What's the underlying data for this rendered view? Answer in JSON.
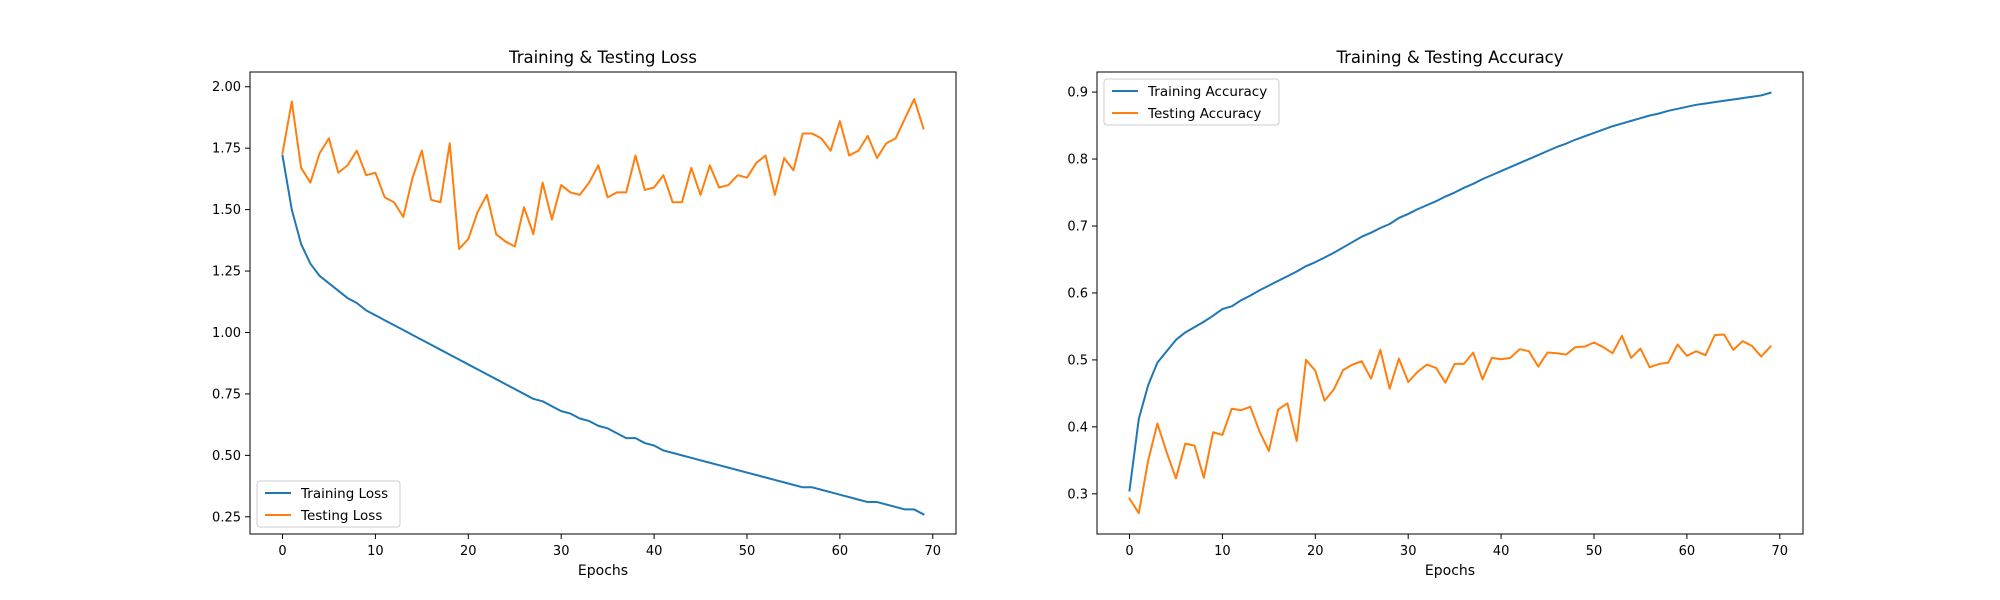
{
  "chart_data": [
    {
      "type": "line",
      "title": "Training & Testing Loss",
      "xlabel": "Epochs",
      "ylabel": "",
      "xlim": [
        -3.5,
        72.5
      ],
      "ylim": [
        0.18,
        2.06
      ],
      "xticks": [
        0,
        10,
        20,
        30,
        40,
        50,
        60,
        70
      ],
      "xtick_labels": [
        "0",
        "10",
        "20",
        "30",
        "40",
        "50",
        "60",
        "70"
      ],
      "yticks": [
        0.25,
        0.5,
        0.75,
        1.0,
        1.25,
        1.5,
        1.75,
        2.0
      ],
      "ytick_labels": [
        "0.25",
        "0.50",
        "0.75",
        "1.00",
        "1.25",
        "1.50",
        "1.75",
        "2.00"
      ],
      "grid": false,
      "legend_position": "lower-left",
      "series": [
        {
          "name": "Training Loss",
          "color": "#1f77b4",
          "values": [
            1.72,
            1.5,
            1.36,
            1.28,
            1.23,
            1.2,
            1.17,
            1.14,
            1.12,
            1.09,
            1.07,
            1.05,
            1.03,
            1.01,
            0.99,
            0.97,
            0.95,
            0.93,
            0.91,
            0.89,
            0.87,
            0.85,
            0.83,
            0.81,
            0.79,
            0.77,
            0.75,
            0.73,
            0.72,
            0.7,
            0.68,
            0.67,
            0.65,
            0.64,
            0.62,
            0.61,
            0.59,
            0.57,
            0.57,
            0.55,
            0.54,
            0.52,
            0.51,
            0.5,
            0.49,
            0.48,
            0.47,
            0.46,
            0.45,
            0.44,
            0.43,
            0.42,
            0.41,
            0.4,
            0.39,
            0.38,
            0.37,
            0.37,
            0.36,
            0.35,
            0.34,
            0.33,
            0.32,
            0.31,
            0.31,
            0.3,
            0.29,
            0.28,
            0.28,
            0.26
          ]
        },
        {
          "name": "Testing Loss",
          "color": "#ff7f0e",
          "values": [
            1.73,
            1.94,
            1.67,
            1.61,
            1.73,
            1.79,
            1.65,
            1.68,
            1.74,
            1.64,
            1.65,
            1.55,
            1.53,
            1.47,
            1.63,
            1.74,
            1.54,
            1.53,
            1.77,
            1.34,
            1.38,
            1.49,
            1.56,
            1.4,
            1.37,
            1.35,
            1.51,
            1.4,
            1.61,
            1.46,
            1.6,
            1.57,
            1.56,
            1.61,
            1.68,
            1.55,
            1.57,
            1.57,
            1.72,
            1.58,
            1.59,
            1.64,
            1.53,
            1.53,
            1.67,
            1.56,
            1.68,
            1.59,
            1.6,
            1.64,
            1.63,
            1.69,
            1.72,
            1.56,
            1.71,
            1.66,
            1.81,
            1.81,
            1.79,
            1.74,
            1.86,
            1.72,
            1.74,
            1.8,
            1.71,
            1.77,
            1.79,
            1.87,
            1.95,
            1.83
          ]
        }
      ]
    },
    {
      "type": "line",
      "title": "Training & Testing Accuracy",
      "xlabel": "Epochs",
      "ylabel": "",
      "xlim": [
        -3.5,
        72.5
      ],
      "ylim": [
        0.24,
        0.93
      ],
      "xticks": [
        0,
        10,
        20,
        30,
        40,
        50,
        60,
        70
      ],
      "xtick_labels": [
        "0",
        "10",
        "20",
        "30",
        "40",
        "50",
        "60",
        "70"
      ],
      "yticks": [
        0.3,
        0.4,
        0.5,
        0.6,
        0.7,
        0.8,
        0.9
      ],
      "ytick_labels": [
        "0.3",
        "0.4",
        "0.5",
        "0.6",
        "0.7",
        "0.8",
        "0.9"
      ],
      "grid": false,
      "legend_position": "upper-left",
      "series": [
        {
          "name": "Training Accuracy",
          "color": "#1f77b4",
          "values": [
            0.305,
            0.412,
            0.462,
            0.496,
            0.513,
            0.53,
            0.541,
            0.549,
            0.557,
            0.566,
            0.576,
            0.58,
            0.589,
            0.596,
            0.604,
            0.611,
            0.618,
            0.625,
            0.632,
            0.64,
            0.646,
            0.653,
            0.66,
            0.668,
            0.676,
            0.684,
            0.69,
            0.697,
            0.703,
            0.712,
            0.718,
            0.725,
            0.731,
            0.737,
            0.744,
            0.75,
            0.757,
            0.763,
            0.77,
            0.776,
            0.782,
            0.788,
            0.794,
            0.8,
            0.806,
            0.812,
            0.818,
            0.823,
            0.829,
            0.834,
            0.839,
            0.844,
            0.849,
            0.853,
            0.857,
            0.861,
            0.865,
            0.868,
            0.872,
            0.875,
            0.878,
            0.881,
            0.883,
            0.885,
            0.887,
            0.889,
            0.891,
            0.893,
            0.895,
            0.899
          ]
        },
        {
          "name": "Testing Accuracy",
          "color": "#ff7f0e",
          "values": [
            0.293,
            0.271,
            0.349,
            0.405,
            0.362,
            0.323,
            0.375,
            0.372,
            0.324,
            0.392,
            0.388,
            0.427,
            0.425,
            0.43,
            0.393,
            0.364,
            0.426,
            0.435,
            0.379,
            0.5,
            0.484,
            0.439,
            0.456,
            0.485,
            0.493,
            0.498,
            0.472,
            0.515,
            0.457,
            0.502,
            0.467,
            0.482,
            0.493,
            0.488,
            0.466,
            0.494,
            0.494,
            0.511,
            0.471,
            0.503,
            0.501,
            0.503,
            0.516,
            0.513,
            0.49,
            0.511,
            0.51,
            0.508,
            0.519,
            0.52,
            0.526,
            0.519,
            0.51,
            0.536,
            0.503,
            0.517,
            0.489,
            0.494,
            0.496,
            0.523,
            0.506,
            0.513,
            0.507,
            0.537,
            0.538,
            0.515,
            0.528,
            0.521,
            0.505,
            0.52
          ]
        }
      ]
    }
  ]
}
